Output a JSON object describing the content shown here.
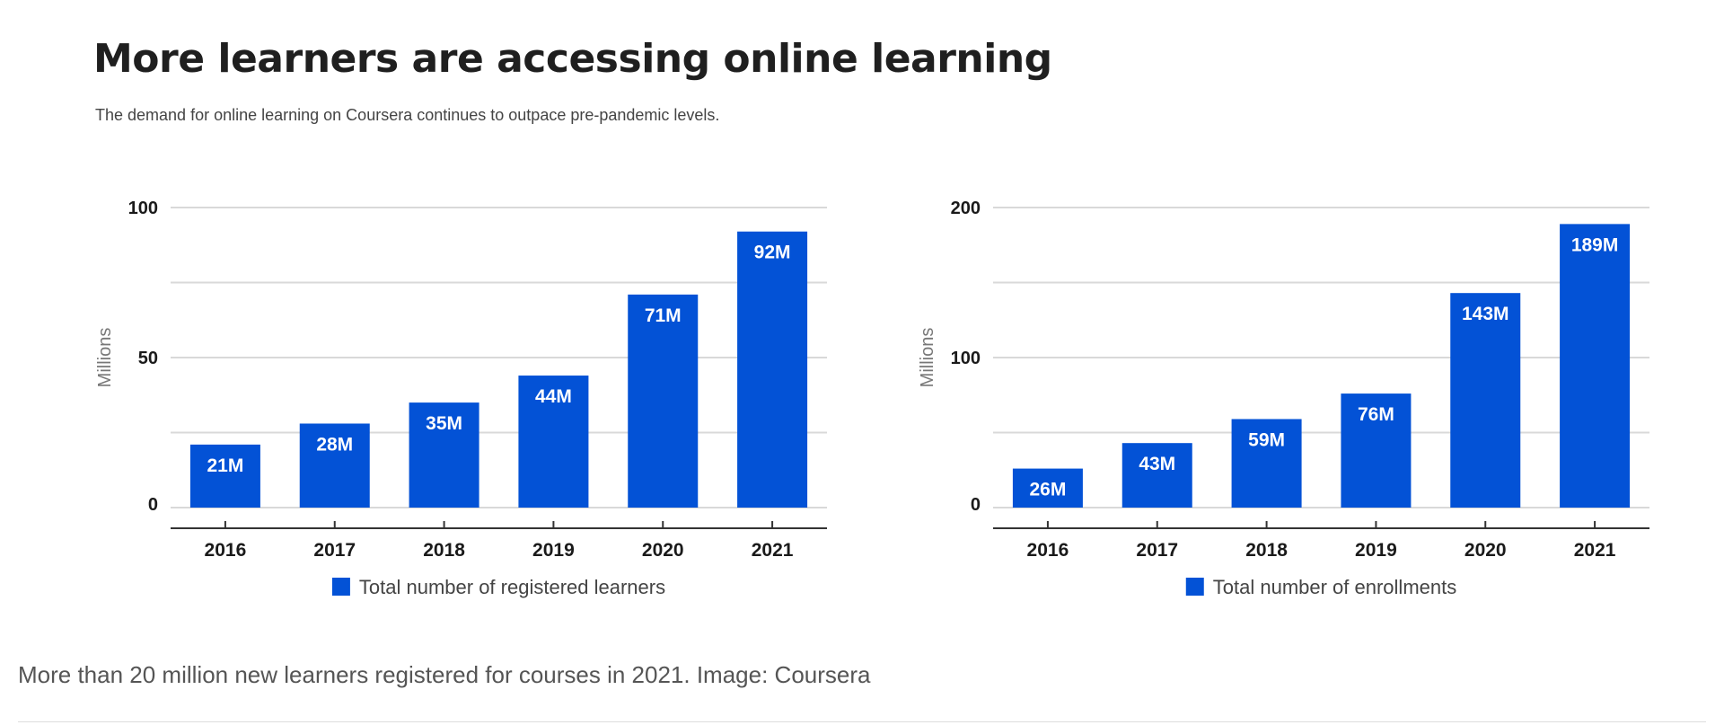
{
  "header": {
    "title": "More learners are accessing online learning",
    "subtitle": "The demand for online learning on Coursera continues to outpace pre-pandemic levels."
  },
  "caption": "More than 20 million new learners registered for courses in 2021. Image: Coursera",
  "colors": {
    "bar": "#0352d6",
    "grid": "#d9d9d9",
    "axis": "#333333",
    "bar_label": "#ffffff"
  },
  "chart_data": [
    {
      "type": "bar",
      "title": "",
      "xlabel": "",
      "ylabel": "Millions",
      "categories": [
        "2016",
        "2017",
        "2018",
        "2019",
        "2020",
        "2021"
      ],
      "series": [
        {
          "name": "Total number of registered learners",
          "values": [
            21,
            28,
            35,
            44,
            71,
            92
          ],
          "labels": [
            "21M",
            "28M",
            "35M",
            "44M",
            "71M",
            "92M"
          ]
        }
      ],
      "ylim": [
        0,
        100
      ],
      "yticks": [
        0,
        50,
        100
      ],
      "grid_lines": [
        0,
        25,
        50,
        75,
        100
      ],
      "grid": true,
      "legend": "bottom-center"
    },
    {
      "type": "bar",
      "title": "",
      "xlabel": "",
      "ylabel": "Millions",
      "categories": [
        "2016",
        "2017",
        "2018",
        "2019",
        "2020",
        "2021"
      ],
      "series": [
        {
          "name": "Total number of enrollments",
          "values": [
            26,
            43,
            59,
            76,
            143,
            189
          ],
          "labels": [
            "26M",
            "43M",
            "59M",
            "76M",
            "143M",
            "189M"
          ]
        }
      ],
      "ylim": [
        0,
        200
      ],
      "yticks": [
        0,
        100,
        200
      ],
      "grid_lines": [
        0,
        50,
        100,
        150,
        200
      ],
      "grid": true,
      "legend": "bottom-center"
    }
  ]
}
